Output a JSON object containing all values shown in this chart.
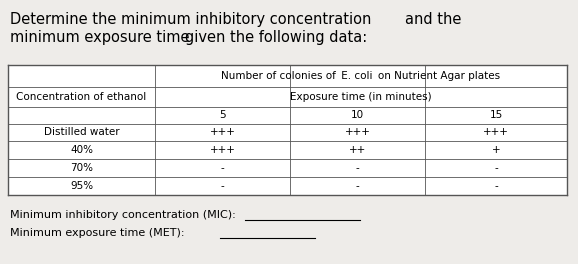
{
  "title_line1a": "Determine the minimum inhibitory concentration",
  "title_line1b": "and the",
  "title_line2a": "minimum exposure time",
  "title_line2b": "given the following data:",
  "table_header_row1": "Number of colonies of ",
  "table_header_row1_italic": "E. coli",
  "table_header_row1_end": " on Nutrient Agar plates",
  "table_header_row2": "Exposure time (in minutes)",
  "col_header": "Concentration of ethanol",
  "time_cols": [
    "5",
    "10",
    "15"
  ],
  "rows": [
    [
      "Distilled water",
      "+++",
      "+++",
      "+++"
    ],
    [
      "40%",
      "+++",
      "++",
      "+"
    ],
    [
      "70%",
      "-",
      "-",
      "-"
    ],
    [
      "95%",
      "-",
      "-",
      "-"
    ]
  ],
  "mic_label": "Minimum inhibitory concentration (MIC): ",
  "met_label": "Minimum exposure time (MET): ",
  "bg_color": "#eeece9",
  "font_size": 7.5,
  "title_font_size": 10.5
}
